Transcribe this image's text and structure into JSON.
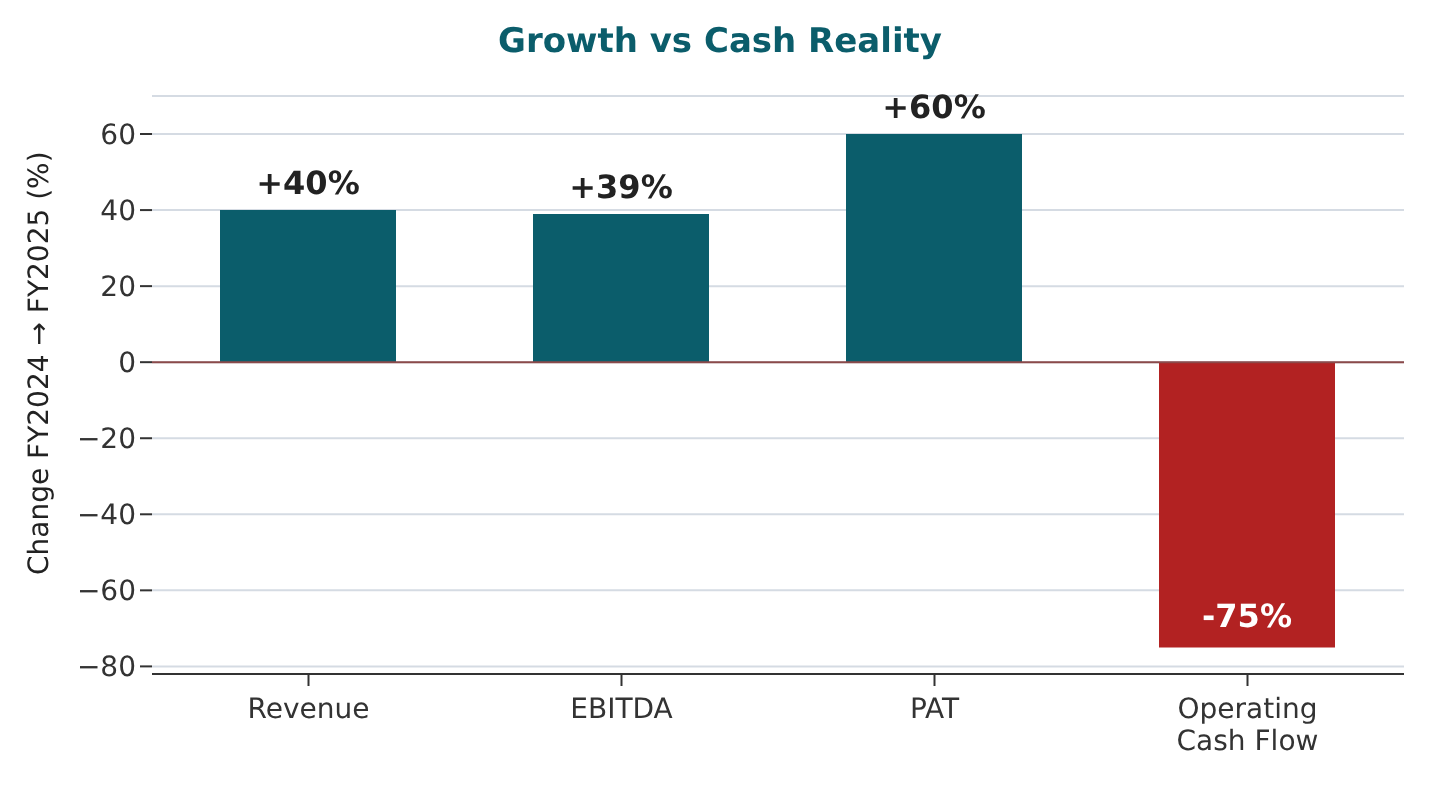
{
  "chart_data": {
    "type": "bar",
    "title": "Growth vs Cash Reality",
    "ylabel": "Change FY2024 → FY2025 (%)",
    "categories": [
      "Revenue",
      "EBITDA",
      "PAT",
      "Operating Cash Flow"
    ],
    "values": [
      40,
      39,
      60,
      -75
    ],
    "colors": [
      "#0b5d6b",
      "#0b5d6b",
      "#0b5d6b",
      "#b22222"
    ],
    "value_labels": [
      "+40%",
      "+39%",
      "+60%",
      "-75%"
    ],
    "ylim": [
      -82,
      70
    ],
    "yticks": [
      -80,
      -60,
      -40,
      -20,
      0,
      20,
      40,
      60
    ],
    "grid": "y",
    "ref_lines": [
      {
        "axis": "y",
        "value": 0,
        "color": "#8b4a4a"
      }
    ]
  }
}
